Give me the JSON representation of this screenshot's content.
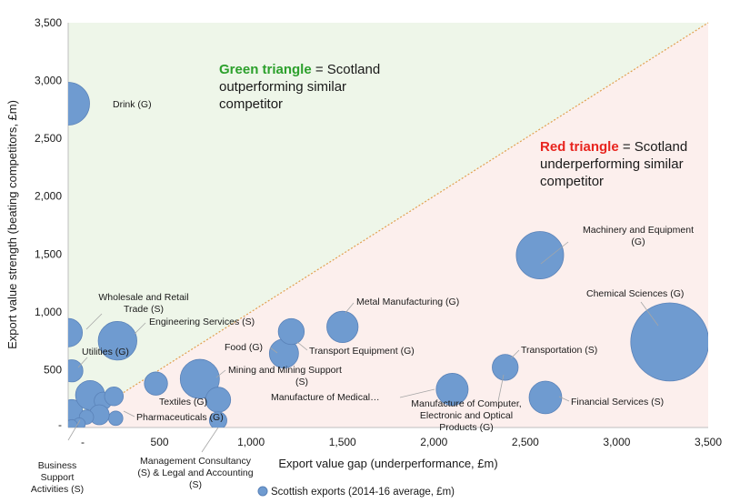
{
  "chart_data": {
    "type": "scatter",
    "subtype": "bubble",
    "title": "",
    "xlabel": "Export value gap (underperformance, £m)",
    "ylabel": "Export value strength (beating competitors, £m)",
    "xlim": [
      0,
      3500
    ],
    "ylim": [
      0,
      3500
    ],
    "x_ticks": [
      "-",
      "500",
      "1,000",
      "1,500",
      "2,000",
      "2,500",
      "3,000",
      "3,500"
    ],
    "y_ticks": [
      "-",
      "500",
      "1,000",
      "1,500",
      "2,000",
      "2,500",
      "3,000",
      "3,500"
    ],
    "grid": false,
    "reference_line": "y = x",
    "legend": {
      "label": "Scottish exports (2014-16 average, £m)",
      "position": "bottom"
    },
    "colors": {
      "bubble_fill": "#6f9bd0",
      "bubble_stroke": "#5a82b8",
      "green_region": "#eef6e9",
      "red_region": "#fcefed",
      "diagonal": "#e0a050",
      "green_text": "#2ca02c",
      "red_text": "#e8251f"
    },
    "annotations": {
      "green": {
        "highlight": "Green triangle",
        "rest_1": " = Scotland",
        "line2": "outperforming similar",
        "line3": "competitor"
      },
      "red": {
        "highlight": "Red triangle",
        "rest_1": " = Scotland",
        "line2": "underperforming similar",
        "line3": "competitor"
      }
    },
    "series": [
      {
        "name": "Scottish exports (2014-16 average, £m)",
        "points": [
          {
            "label": "Drink (G)",
            "x": 0,
            "y": 2800,
            "size": 4000
          },
          {
            "label": "Wholesale and Retail Trade (S)",
            "x": 0,
            "y": 820,
            "size": 1600
          },
          {
            "label": "Engineering Services (S)",
            "x": 270,
            "y": 750,
            "size": 3200
          },
          {
            "label": "Utilities (G)",
            "x": 20,
            "y": 490,
            "size": 900
          },
          {
            "label": "Business Support Activities (S)",
            "x": 20,
            "y": 150,
            "size": 800
          },
          {
            "label": "Pharmaceuticals (G)",
            "x": 260,
            "y": 80,
            "size": 300
          },
          {
            "label": "",
            "x": 120,
            "y": 280,
            "size": 1700
          },
          {
            "label": "",
            "x": 190,
            "y": 230,
            "size": 500
          },
          {
            "label": "",
            "x": 250,
            "y": 270,
            "size": 600
          },
          {
            "label": "",
            "x": 170,
            "y": 110,
            "size": 700
          },
          {
            "label": "",
            "x": 100,
            "y": 90,
            "size": 300
          },
          {
            "label": "",
            "x": 60,
            "y": 30,
            "size": 200
          },
          {
            "label": "",
            "x": 20,
            "y": 20,
            "size": 150
          },
          {
            "label": "Textiles (G)",
            "x": 480,
            "y": 380,
            "size": 1000
          },
          {
            "label": "Mining and Mining Support (S)",
            "x": 720,
            "y": 420,
            "size": 3300
          },
          {
            "label": "",
            "x": 820,
            "y": 240,
            "size": 1200
          },
          {
            "label": "Management Consultancy (S) & Legal and Accounting (S)",
            "x": 820,
            "y": 60,
            "size": 500
          },
          {
            "label": "Food (G)",
            "x": 1180,
            "y": 640,
            "size": 1700
          },
          {
            "label": "Transport Equipment (G)",
            "x": 1220,
            "y": 830,
            "size": 1300
          },
          {
            "label": "Metal Manufacturing (G)",
            "x": 1500,
            "y": 870,
            "size": 2000
          },
          {
            "label": "Manufacture of Medical…",
            "x": 2100,
            "y": 330,
            "size": 2100
          },
          {
            "label": "Manufacture of Computer, Electronic and Optical Products (G)",
            "x": 2390,
            "y": 520,
            "size": 1300
          },
          {
            "label": "Transportation (S)",
            "x": 2390,
            "y": 520,
            "size": 0
          },
          {
            "label": "Machinery and Equipment (G)",
            "x": 2580,
            "y": 1490,
            "size": 5000
          },
          {
            "label": "Financial Services (S)",
            "x": 2610,
            "y": 260,
            "size": 2200
          },
          {
            "label": "Chemical Sciences (G)",
            "x": 3290,
            "y": 740,
            "size": 14500
          }
        ]
      }
    ]
  }
}
